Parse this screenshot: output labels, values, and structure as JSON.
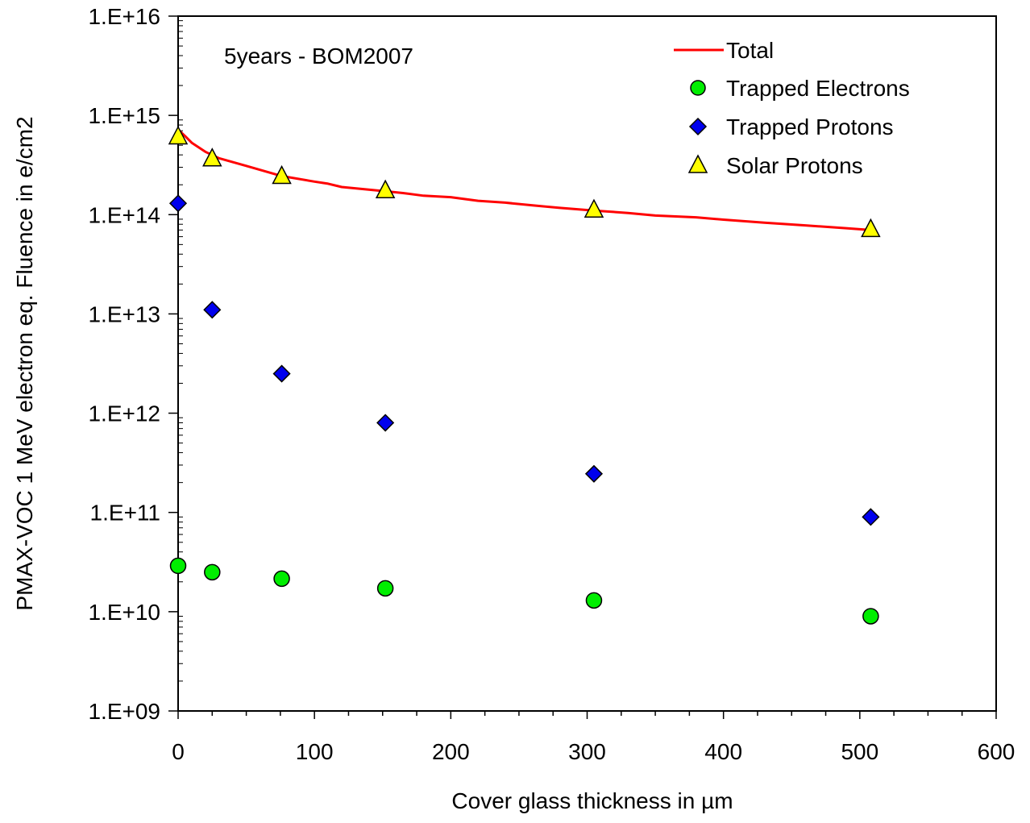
{
  "chart_data": {
    "type": "scatter",
    "title": "",
    "annotation": "5years - BOM2007",
    "xlabel": "Cover glass thickness in µm",
    "ylabel": "PMAX-VOC 1 MeV electron eq. Fluence in e/cm2",
    "xlim": [
      0,
      600
    ],
    "ylim": [
      1000000000.0,
      1e+16
    ],
    "yscale": "log",
    "grid": false,
    "legend_position": "top-right",
    "x_tick_labels": [
      "0",
      "100",
      "200",
      "300",
      "400",
      "500",
      "600"
    ],
    "y_tick_labels": [
      "1.E+09",
      "1.E+10",
      "1.E+11",
      "1.E+12",
      "1.E+13",
      "1.E+14",
      "1.E+15",
      "1.E+16"
    ],
    "series": [
      {
        "name": "Total",
        "kind": "line",
        "color": "#ff0000",
        "x": [
          0,
          5,
          10,
          20,
          30,
          50,
          76,
          100,
          110,
          120,
          152,
          165,
          180,
          200,
          220,
          240,
          260,
          280,
          305,
          330,
          350,
          380,
          400,
          430,
          460,
          490,
          508
        ],
        "y": [
          720000000000000.0,
          620000000000000.0,
          530000000000000.0,
          430000000000000.0,
          370000000000000.0,
          310000000000000.0,
          245000000000000.0,
          215000000000000.0,
          205000000000000.0,
          190000000000000.0,
          172000000000000.0,
          165000000000000.0,
          155000000000000.0,
          150000000000000.0,
          138000000000000.0,
          132000000000000.0,
          124000000000000.0,
          117000000000000.0,
          110000000000000.0,
          104000000000000.0,
          98000000000000.0,
          94000000000000.0,
          89000000000000.0,
          83000000000000.0,
          78000000000000.0,
          73000000000000.0,
          70000000000000.0
        ]
      },
      {
        "name": "Trapped Electrons",
        "kind": "marker",
        "marker": "circle",
        "color": "#00ee00",
        "x": [
          0,
          25,
          76,
          152,
          305,
          508
        ],
        "y": [
          29000000000.0,
          25000000000.0,
          21500000000.0,
          17200000000.0,
          13000000000.0,
          9000000000.0
        ]
      },
      {
        "name": "Trapped Protons",
        "kind": "marker",
        "marker": "diamond",
        "color": "#0000ee",
        "x": [
          0,
          25,
          76,
          152,
          305,
          508
        ],
        "y": [
          130000000000000.0,
          11000000000000.0,
          2500000000000.0,
          800000000000.0,
          245000000000.0,
          90000000000.0
        ]
      },
      {
        "name": "Solar Protons",
        "kind": "marker",
        "marker": "triangle",
        "color": "#ffff00",
        "x": [
          0,
          25,
          76,
          152,
          305,
          508
        ],
        "y": [
          600000000000000.0,
          360000000000000.0,
          240000000000000.0,
          172000000000000.0,
          110000000000000.0,
          70000000000000.0
        ]
      }
    ]
  }
}
